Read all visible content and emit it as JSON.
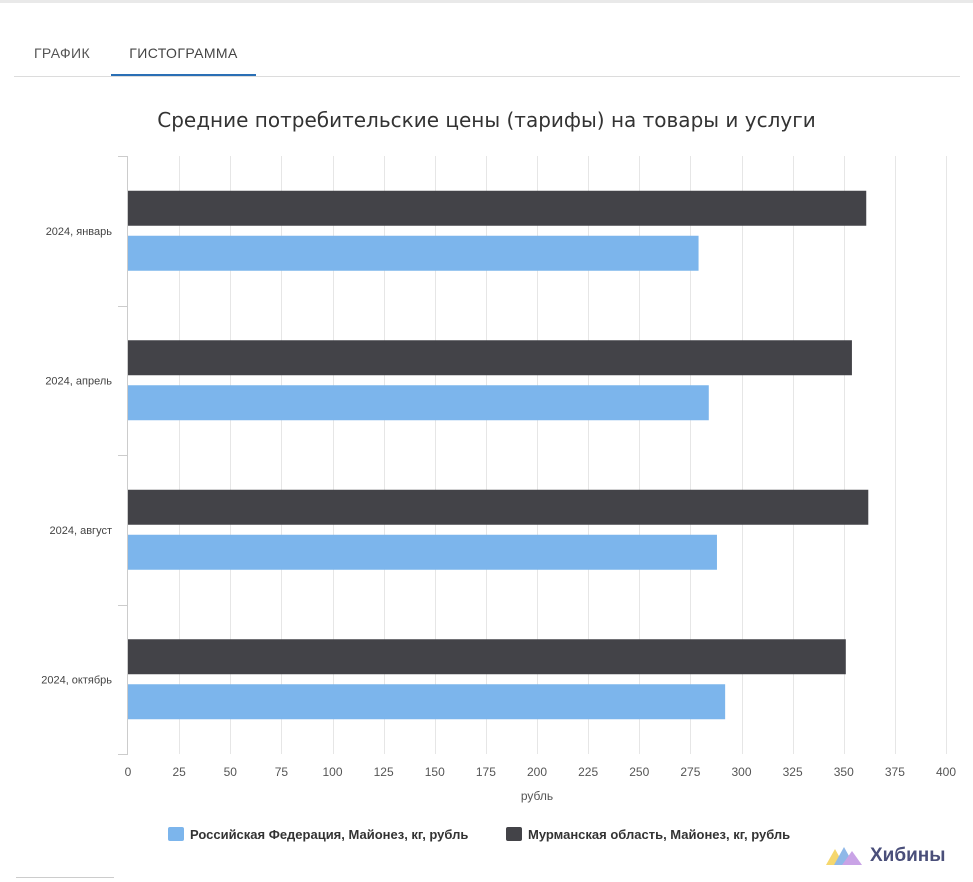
{
  "tabs": [
    {
      "label": "ГРАФИК",
      "active": false
    },
    {
      "label": "ГИСТОГРАММА",
      "active": true
    }
  ],
  "chart_data": {
    "type": "bar",
    "orientation": "horizontal",
    "title": "Средние потребительские цены (тарифы) на товары и услуги",
    "xlabel": "рубль",
    "ylabel": "",
    "categories": [
      "2024, январь",
      "2024, апрель",
      "2024, август",
      "2024, октябрь"
    ],
    "xlim": [
      0,
      400
    ],
    "xticks": [
      0,
      25,
      50,
      75,
      100,
      125,
      150,
      175,
      200,
      225,
      250,
      275,
      300,
      325,
      350,
      375,
      400
    ],
    "grid": true,
    "legend": "bottom",
    "series": [
      {
        "name": "Мурманская область, Майонез, кг, рубль",
        "color": "#434348",
        "values": [
          361,
          354,
          362,
          351
        ]
      },
      {
        "name": "Российская Федерация, Майонез, кг, рубль",
        "color": "#7cb5ec",
        "values": [
          279,
          284,
          288,
          292
        ]
      }
    ],
    "legend_order": [
      1,
      0
    ]
  },
  "watermark": {
    "text": "Хибины",
    "logo_icon": "mountains-logo-icon"
  }
}
